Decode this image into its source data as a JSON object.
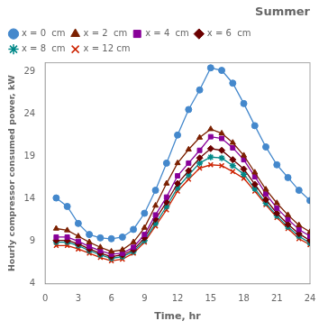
{
  "chart_data": {
    "type": "line",
    "title": "Summer",
    "x_label": "Time, hr",
    "y_label": "Hourly compressor consumed power, kW",
    "x": [
      1,
      2,
      3,
      4,
      5,
      6,
      7,
      8,
      9,
      10,
      11,
      12,
      13,
      14,
      15,
      16,
      17,
      18,
      19,
      20,
      21,
      22,
      23,
      24
    ],
    "xlim": [
      0,
      24
    ],
    "ylim": [
      4,
      30
    ],
    "xticks": [
      0,
      3,
      6,
      9,
      12,
      15,
      18,
      21,
      24
    ],
    "yticks": [
      4,
      9,
      14,
      19,
      24,
      29
    ],
    "grid": false,
    "legend": "upper left",
    "series": [
      {
        "name": "x = 0  cm",
        "color": "#4488CC",
        "marker": "circle",
        "values": [
          14.1,
          13.1,
          11.1,
          9.8,
          9.4,
          9.3,
          9.5,
          10.4,
          12.3,
          15.0,
          18.2,
          21.5,
          24.5,
          26.8,
          29.4,
          29.1,
          27.6,
          25.2,
          22.6,
          20.1,
          18.0,
          16.5,
          15.0,
          13.8
        ]
      },
      {
        "name": "x = 2  cm",
        "color": "#7B2000",
        "marker": "triangle",
        "values": [
          10.5,
          10.3,
          9.6,
          8.9,
          8.3,
          7.8,
          8.0,
          8.9,
          10.6,
          13.2,
          15.8,
          18.2,
          19.8,
          21.2,
          22.2,
          21.7,
          20.6,
          19.1,
          17.1,
          15.1,
          13.5,
          12.1,
          10.9,
          10.1
        ]
      },
      {
        "name": "x = 4  cm",
        "color": "#880099",
        "marker": "square",
        "values": [
          9.5,
          9.5,
          9.0,
          8.4,
          7.9,
          7.5,
          7.6,
          8.3,
          9.8,
          12.1,
          14.2,
          16.7,
          18.2,
          19.7,
          21.3,
          21.1,
          20.0,
          18.6,
          16.6,
          14.6,
          12.9,
          11.6,
          10.4,
          9.6
        ]
      },
      {
        "name": "x = 6  cm",
        "color": "#6B0000",
        "marker": "diamond",
        "values": [
          9.1,
          9.1,
          8.7,
          8.1,
          7.6,
          7.2,
          7.4,
          8.0,
          9.4,
          11.6,
          13.6,
          15.8,
          17.3,
          18.8,
          19.9,
          19.7,
          18.6,
          17.5,
          15.7,
          13.9,
          12.3,
          11.0,
          9.9,
          9.1
        ]
      },
      {
        "name": "x = 8  cm",
        "color": "#008888",
        "marker": "star",
        "values": [
          8.9,
          8.9,
          8.5,
          7.9,
          7.4,
          7.0,
          7.2,
          7.8,
          9.1,
          11.1,
          13.1,
          15.3,
          16.8,
          18.2,
          18.9,
          18.8,
          17.9,
          16.9,
          15.2,
          13.5,
          12.0,
          10.7,
          9.6,
          8.8
        ]
      },
      {
        "name": "x = 12 cm",
        "color": "#CC2200",
        "marker": "x",
        "values": [
          8.5,
          8.5,
          8.1,
          7.6,
          7.1,
          6.7,
          6.9,
          7.6,
          8.9,
          10.8,
          12.7,
          14.9,
          16.3,
          17.6,
          18.0,
          17.9,
          17.2,
          16.4,
          14.9,
          13.3,
          11.8,
          10.5,
          9.3,
          8.6
        ]
      }
    ]
  }
}
